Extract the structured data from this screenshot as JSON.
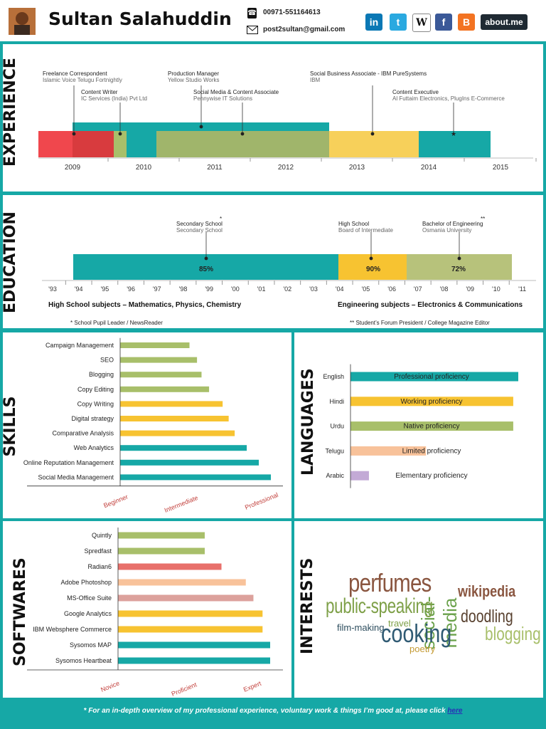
{
  "colors": {
    "teal": "#16a8a6",
    "red": "#f0474d",
    "green": "#a8bf6a",
    "yellow": "#f7c331",
    "peach": "#f8c29a",
    "salmon": "#e8706b",
    "pink": "#dca19c",
    "lavender": "#c3aad6"
  },
  "header": {
    "name": "Sultan Salahuddin",
    "phone": "00971-551164613",
    "email": "post2sultan@gmail.com",
    "social": [
      {
        "name": "linkedin",
        "label": "in",
        "color": "#0a78b5"
      },
      {
        "name": "twitter",
        "label": "t",
        "color": "#2aa9e0"
      },
      {
        "name": "wikipedia",
        "label": "W",
        "color": "#ffffff"
      },
      {
        "name": "facebook",
        "label": "f",
        "color": "#3b5998"
      },
      {
        "name": "blogger",
        "label": "B",
        "color": "#f37322"
      },
      {
        "name": "aboutme",
        "label": "about.me",
        "color": "#1f2a33"
      }
    ]
  },
  "experience": {
    "title": "EXPERIENCE",
    "years": [
      "2009",
      "2010",
      "2011",
      "2012",
      "2013",
      "2014",
      "2015"
    ],
    "jobs": [
      {
        "title": "Freelance Correspondent",
        "org": "Islamic Voice Telugu Fortnightly"
      },
      {
        "title": "Content Writer",
        "org": "IC Services (India) Pvt Ltd"
      },
      {
        "title": "Production Manager",
        "org": "Yellow Studio Works"
      },
      {
        "title": "Social Media & Content Associate",
        "org": "Pennywise IT Solutions"
      },
      {
        "title": "Social Business Associate - IBM PureSystems",
        "org": "IBM"
      },
      {
        "title": "Content Executive",
        "org": "Al Futtaim Electronics, PlugIns E-Commerce"
      }
    ]
  },
  "education": {
    "title": "EDUCATION",
    "years": [
      "'93",
      "'94",
      "'95",
      "'96",
      "'97",
      "'98",
      "'99",
      "'00",
      "'01",
      "'02",
      "'03",
      "'04",
      "'05",
      "'06",
      "'07",
      "'08",
      "'09",
      "'10",
      "'11"
    ],
    "items": [
      {
        "title": "Secondary School",
        "org": "Secondary School",
        "mark": "*",
        "score": "85%"
      },
      {
        "title": "High School",
        "org": "Board of Intermediate",
        "mark": "",
        "score": "90%"
      },
      {
        "title": "Bachelor of Engineering",
        "org": "Osmania University",
        "mark": "**",
        "score": "72%"
      }
    ],
    "hs_subjects": "High School subjects – Mathematics, Physics, Chemistry",
    "eng_subjects": "Engineering subjects – Electronics & Communications",
    "note1": "* School Pupil Leader / NewsReader",
    "note2": "** Student’s Forum President / College Magazine Editor"
  },
  "skills": {
    "title": "SKILLS",
    "scale": [
      "Beginner",
      "Intermediate",
      "Professional"
    ],
    "items": [
      {
        "name": "Campaign Management",
        "value": 0.46,
        "color": "#a8bf6a"
      },
      {
        "name": "SEO",
        "value": 0.51,
        "color": "#a8bf6a"
      },
      {
        "name": "Blogging",
        "value": 0.54,
        "color": "#a8bf6a"
      },
      {
        "name": "Copy Editing",
        "value": 0.59,
        "color": "#a8bf6a"
      },
      {
        "name": "Copy Writing",
        "value": 0.68,
        "color": "#f7c331"
      },
      {
        "name": "Digital strategy",
        "value": 0.72,
        "color": "#f7c331"
      },
      {
        "name": "Comparative Analysis",
        "value": 0.76,
        "color": "#f7c331"
      },
      {
        "name": "Web Analytics",
        "value": 0.84,
        "color": "#16a8a6"
      },
      {
        "name": "Online Reputation Management",
        "value": 0.92,
        "color": "#16a8a6"
      },
      {
        "name": "Social Media Management",
        "value": 1.0,
        "color": "#16a8a6"
      }
    ]
  },
  "languages": {
    "title": "LANGUAGES",
    "items": [
      {
        "name": "English",
        "level": "Professional proficiency",
        "value": 1.0,
        "color": "#16a8a6"
      },
      {
        "name": "Hindi",
        "level": "Working proficiency",
        "value": 0.97,
        "color": "#f7c331"
      },
      {
        "name": "Urdu",
        "level": "Native proficiency",
        "value": 0.97,
        "color": "#a8bf6a"
      },
      {
        "name": "Telugu",
        "level": "Limited proficiency",
        "value": 0.45,
        "color": "#f8c29a"
      },
      {
        "name": "Arabic",
        "level": "Elementary proficiency",
        "value": 0.11,
        "color": "#c3aad6"
      }
    ]
  },
  "softwares": {
    "title": "SOFTWARES",
    "scale": [
      "Novice",
      "Proficient",
      "Expert"
    ],
    "items": [
      {
        "name": "Quintly",
        "value": 0.57,
        "color": "#a8bf6a"
      },
      {
        "name": "Spredfast",
        "value": 0.57,
        "color": "#a8bf6a"
      },
      {
        "name": "Radian6",
        "value": 0.68,
        "color": "#e8706b"
      },
      {
        "name": "Adobe Photoshop",
        "value": 0.84,
        "color": "#f8c29a"
      },
      {
        "name": "MS-Office Suite",
        "value": 0.89,
        "color": "#dca19c"
      },
      {
        "name": "Google Analytics",
        "value": 0.95,
        "color": "#f7c331"
      },
      {
        "name": "IBM Websphere Commerce",
        "value": 0.95,
        "color": "#f7c331"
      },
      {
        "name": "Sysomos MAP",
        "value": 1.0,
        "color": "#16a8a6"
      },
      {
        "name": "Sysomos Heartbeat",
        "value": 1.0,
        "color": "#16a8a6"
      }
    ]
  },
  "interests": {
    "title": "INTERESTS",
    "words": [
      "perfumes",
      "social-media",
      "wikipedia",
      "public-speaking",
      "doodling",
      "travel",
      "film-making",
      "cooking",
      "blogging",
      "poetry"
    ]
  },
  "footer": {
    "text": "* For an in-depth overview of my professional experience, voluntary work & things I’m good at, please click",
    "link": "here"
  }
}
